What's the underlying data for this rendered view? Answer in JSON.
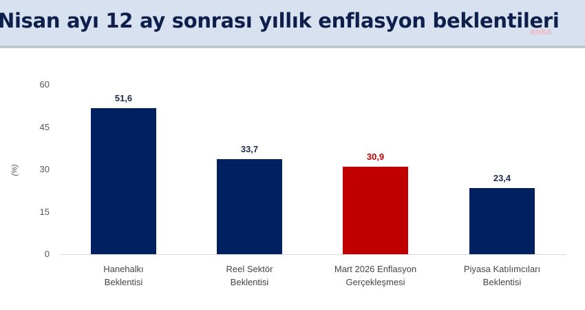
{
  "header": {
    "title": "Nisan ayı 12 ay sonrası yıllık enflasyon beklentileri",
    "watermark": "anka"
  },
  "colors": {
    "header_bg": "#d8e1ef",
    "title": "#0d1f4a",
    "navy_bar": "#002060",
    "red_bar": "#c00000",
    "navy_label": "#1f2d4d",
    "red_label": "#c00000"
  },
  "chart_data": {
    "type": "bar",
    "title": "Nisan ayı 12 ay sonrası yıllık enflasyon beklentileri",
    "xlabel": "",
    "ylabel": "(%)",
    "ylim": [
      0,
      60
    ],
    "yticks": [
      "0",
      "15",
      "30",
      "45",
      "60"
    ],
    "grid": false,
    "legend": null,
    "categories": [
      "Hanehalkı Beklentisi",
      "Reel Sektör Beklentisi",
      "Mart 2026 Enflasyon Gerçekleşmesi",
      "Piyasa Katılımcıları Beklentisi"
    ],
    "values": [
      51.6,
      33.7,
      30.9,
      23.4
    ],
    "value_labels": [
      "51,6",
      "33,7",
      "30,9",
      "23,4"
    ],
    "bar_colors": [
      "#002060",
      "#002060",
      "#c00000",
      "#002060"
    ]
  },
  "bars": [
    {
      "line1": "Hanehalkı",
      "line2": "Beklentisi",
      "value": "51,6"
    },
    {
      "line1": "Reel Sektör",
      "line2": "Beklentisi",
      "value": "33,7"
    },
    {
      "line1": "Mart 2026 Enflasyon",
      "line2": "Gerçekleşmesi",
      "value": "30,9"
    },
    {
      "line1": "Piyasa Katılımcıları",
      "line2": "Beklentisi",
      "value": "23,4"
    }
  ]
}
